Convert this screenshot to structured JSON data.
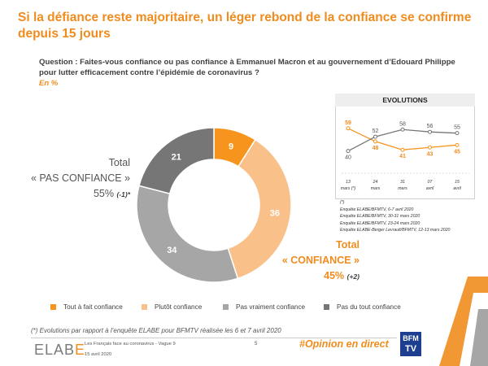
{
  "title": "Si la défiance reste majoritaire, un léger rebond de la confiance se confirme depuis 15 jours",
  "question": "Question : Faites-vous confiance ou pas confiance à Emmanuel Macron et au gouvernement d’Edouard Philippe pour lutter efficacement contre l’épidémie de coronavirus ?",
  "unit": "En %",
  "colors": {
    "tout_a_fait": "#f7941d",
    "plutot": "#f9c08a",
    "pas_vraiment": "#a6a6a6",
    "pas_du_tout": "#767676",
    "accent": "#f08c1e"
  },
  "pas_confiance": {
    "line1": "Total",
    "line2": "« PAS CONFIANCE »",
    "value": "55%",
    "delta": "(-1)*"
  },
  "confiance": {
    "line1": "Total",
    "line2": "« CONFIANCE »",
    "value": "45%",
    "delta": "(+2)"
  },
  "evolutions_title": "EVOLUTIONS",
  "evolutions_notes": [
    "(*)",
    "Enquête ELABE/BFMTV, 6-7 avril 2020",
    "Enquête ELABE/BFMTV, 30-31 mars 2020",
    "Enquête ELABE/BFMTV, 23-24 mars 2020",
    "Enquête ELABE-Berger Levrault/BFMTV, 12-13 mars 2020"
  ],
  "legend": [
    "Tout à fait confiance",
    "Plutôt confiance",
    "Pas vraiment confiance",
    "Pas du tout confiance"
  ],
  "footnote": "(*) Evolutions par rapport à l’enquête ELABE pour BFMTV réalisée les 6 et 7 avril 2020",
  "footer": {
    "logo_a": "ELAB",
    "logo_b": "E",
    "survey": "Les Français face au coronavirus - Vague 9",
    "date": "15 avril 2020",
    "page": "5",
    "hashtag": "#Opinion en direct",
    "bfm_line1": "BFM",
    "bfm_line2": "TV"
  },
  "chart_data": [
    {
      "type": "pie",
      "categories": [
        "Tout à fait confiance",
        "Plutôt confiance",
        "Pas vraiment confiance",
        "Pas du tout confiance"
      ],
      "values": [
        9,
        36,
        34,
        21
      ],
      "title": "",
      "donut": true
    },
    {
      "type": "line",
      "title": "EVOLUTIONS",
      "x": [
        "13 mars (*)",
        "24 mars",
        "31 mars",
        "07 avril",
        "15 avril"
      ],
      "series": [
        {
          "name": "",
          "color": "#f7941d",
          "values": [
            59,
            48,
            41,
            43,
            45
          ]
        },
        {
          "name": "",
          "color": "#767676",
          "values": [
            40,
            52,
            58,
            56,
            55
          ]
        }
      ],
      "ylim": [
        35,
        65
      ],
      "grid": false
    }
  ]
}
